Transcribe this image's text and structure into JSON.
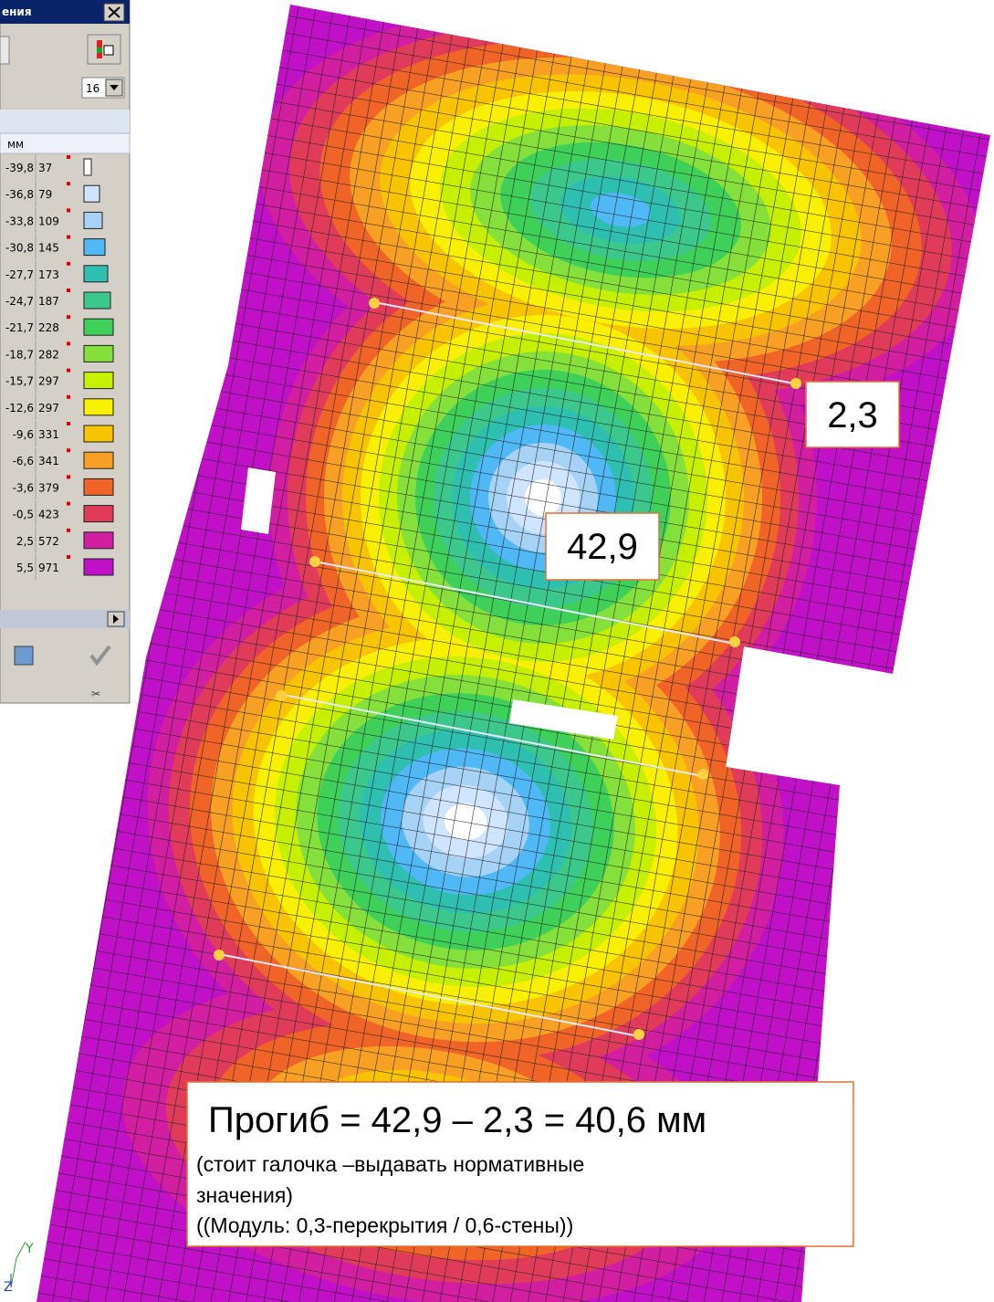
{
  "window": {
    "title": "ения",
    "count_select": "16",
    "unit": "мм"
  },
  "legend": {
    "rows": [
      {
        "value": "-39,8",
        "count": 37,
        "color": "#ffffff"
      },
      {
        "value": "-36,8",
        "count": 79,
        "color": "#cfe4ff"
      },
      {
        "value": "-33,8",
        "count": 109,
        "color": "#a6d2f5"
      },
      {
        "value": "-30,8",
        "count": 145,
        "color": "#4fb8f5"
      },
      {
        "value": "-27,7",
        "count": 173,
        "color": "#2fbfb0"
      },
      {
        "value": "-24,7",
        "count": 187,
        "color": "#3cc88c"
      },
      {
        "value": "-21,7",
        "count": 228,
        "color": "#3fd05a"
      },
      {
        "value": "-18,7",
        "count": 282,
        "color": "#86e03c"
      },
      {
        "value": "-15,7",
        "count": 297,
        "color": "#c6f000"
      },
      {
        "value": "-12,6",
        "count": 297,
        "color": "#f8f000"
      },
      {
        "value": "-9,6",
        "count": 331,
        "color": "#f8c400"
      },
      {
        "value": "-6,6",
        "count": 341,
        "color": "#f8a024"
      },
      {
        "value": "-3,6",
        "count": 379,
        "color": "#f06428"
      },
      {
        "value": "-0,5",
        "count": 423,
        "color": "#e03c5a"
      },
      {
        "value": "2,5",
        "count": 572,
        "color": "#d21ea0"
      },
      {
        "value": "5,5",
        "count": 971,
        "color": "#c010c8"
      }
    ]
  },
  "annotations": {
    "support_value": "2,3",
    "center_value": "42,9",
    "formula": "Прогиб = 42,9 – 2,3 = 40,6 мм",
    "note_line1": "(стоит галочка –выдавать нормативные",
    "note_line2": "значения)",
    "module": "((Модуль:  0,3-перекрытия / 0,6-стены))"
  },
  "axes": {
    "y": "Y",
    "z": "Z"
  }
}
